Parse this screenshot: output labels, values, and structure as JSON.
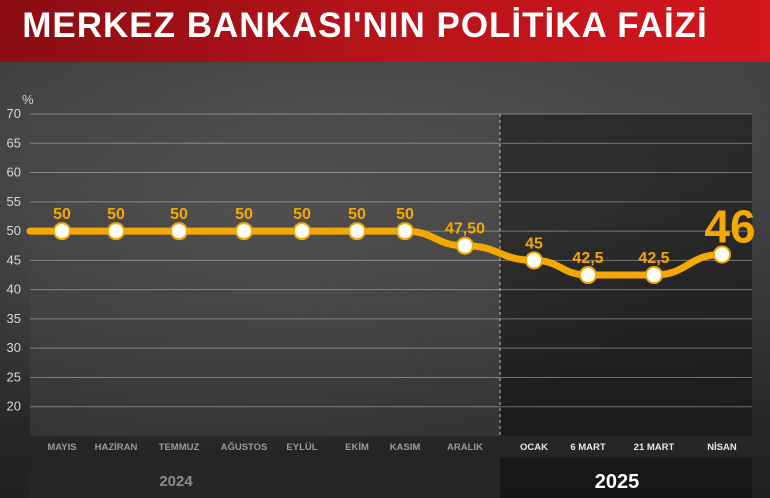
{
  "title": "MERKEZ BANKASI'NIN POLİTİKA FAİZİ",
  "colors": {
    "line": "#f5a800",
    "marker": "#ffffff",
    "title_bg": "#c4141b"
  },
  "chart_data": {
    "type": "line",
    "title": "MERKEZ BANKASI'NIN POLİTİKA FAİZİ",
    "ylabel": "%",
    "ylim": [
      15,
      70
    ],
    "yticks": [
      20,
      25,
      30,
      35,
      40,
      45,
      50,
      55,
      60,
      65,
      70
    ],
    "grid": true,
    "categories": [
      "MAYIS",
      "HAZİRAN",
      "TEMMUZ",
      "AĞUSTOS",
      "EYLÜL",
      "EKİM",
      "KASIM",
      "ARALIK",
      "OCAK",
      "6 MART",
      "21 MART",
      "NİSAN"
    ],
    "values": [
      50,
      50,
      50,
      50,
      50,
      50,
      50,
      47.5,
      45,
      42.5,
      42.5,
      46
    ],
    "data_labels": [
      "50",
      "50",
      "50",
      "50",
      "50",
      "50",
      "50",
      "47,50",
      "45",
      "42,5",
      "42,5",
      "46"
    ],
    "years": [
      {
        "label": "2024",
        "from": 0,
        "to": 7
      },
      {
        "label": "2025",
        "from": 8,
        "to": 11
      }
    ]
  }
}
